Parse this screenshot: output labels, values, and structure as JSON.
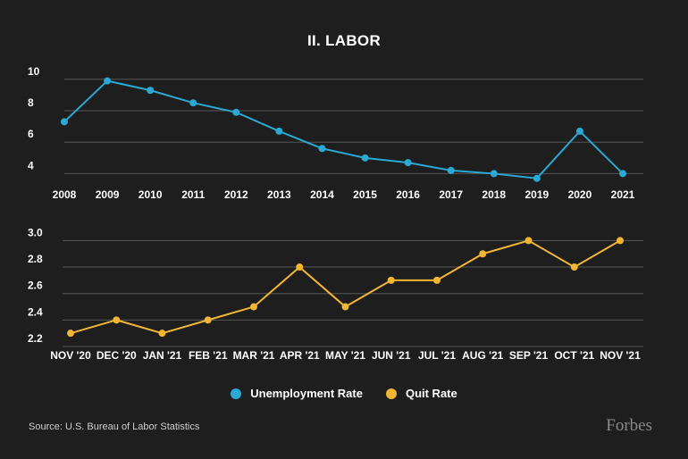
{
  "title": "II. LABOR",
  "source": "Source: U.S. Bureau of Labor Statistics",
  "logo": "Forbes",
  "colors": {
    "background": "#1e1e1e",
    "unemployment": "#29a9d4",
    "quit": "#f2b632",
    "grid": "#555555"
  },
  "legend": [
    {
      "label": "Unemployment Rate",
      "color": "#29a9d4"
    },
    {
      "label": "Quit Rate",
      "color": "#f2b632"
    }
  ],
  "chart_data": [
    {
      "type": "line",
      "categories": [
        "2008",
        "2009",
        "2010",
        "2011",
        "2012",
        "2013",
        "2014",
        "2015",
        "2016",
        "2017",
        "2018",
        "2019",
        "2020",
        "2021"
      ],
      "series": [
        {
          "name": "Unemployment Rate",
          "values": [
            7.3,
            9.9,
            9.3,
            8.5,
            7.9,
            6.7,
            5.6,
            5.0,
            4.7,
            4.2,
            4.0,
            3.7,
            6.7,
            4.0
          ]
        }
      ],
      "yticks": [
        4,
        6,
        8,
        10
      ],
      "ylim": [
        3.4,
        10.5
      ],
      "grid": true
    },
    {
      "type": "line",
      "categories": [
        "NOV '20",
        "DEC '20",
        "JAN '21",
        "FEB '21",
        "MAR '21",
        "APR '21",
        "MAY '21",
        "JUN '21",
        "JUL '21",
        "AUG '21",
        "SEP '21",
        "OCT '21",
        "NOV '21"
      ],
      "series": [
        {
          "name": "Quit Rate",
          "values": [
            2.3,
            2.4,
            2.3,
            2.4,
            2.5,
            2.8,
            2.5,
            2.7,
            2.7,
            2.9,
            3.0,
            2.8,
            3.0
          ]
        }
      ],
      "yticks": [
        "2.2",
        "2.4",
        "2.6",
        "2.8",
        "3.0"
      ],
      "ylim": [
        2.2,
        3.05
      ],
      "grid": true
    }
  ]
}
